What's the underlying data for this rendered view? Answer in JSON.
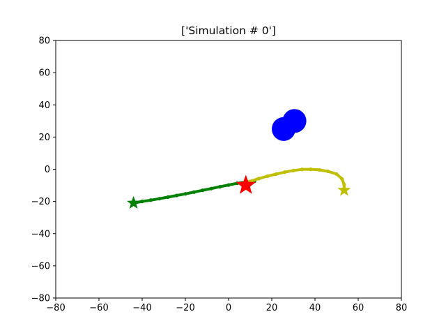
{
  "chart_data": {
    "type": "scatter",
    "title": "['Simulation # 0']",
    "xlabel": "",
    "ylabel": "",
    "xlim": [
      -80,
      80
    ],
    "ylim": [
      -80,
      80
    ],
    "xticks": [
      -80,
      -60,
      -40,
      -20,
      0,
      20,
      40,
      60,
      80
    ],
    "yticks": [
      -80,
      -60,
      -40,
      -20,
      0,
      20,
      40,
      60,
      80
    ],
    "grid": false,
    "series": [
      {
        "kind": "trajectory",
        "color": "#008000",
        "points": [
          [
            -44,
            -21
          ],
          [
            -40,
            -20
          ],
          [
            -36,
            -19.2
          ],
          [
            -32,
            -18.3
          ],
          [
            -28,
            -17.3
          ],
          [
            -24,
            -16.3
          ],
          [
            -20,
            -15.3
          ],
          [
            -16,
            -14.2
          ],
          [
            -12,
            -13.1
          ],
          [
            -8,
            -12
          ],
          [
            -4,
            -10.9
          ],
          [
            0,
            -9.8
          ],
          [
            4,
            -8.7
          ],
          [
            8,
            -8
          ],
          [
            12,
            -7.5
          ]
        ]
      },
      {
        "kind": "trajectory",
        "color": "#bfbf00",
        "points": [
          [
            7,
            -10
          ],
          [
            10,
            -7.5
          ],
          [
            14,
            -5.8
          ],
          [
            18,
            -4.3
          ],
          [
            22,
            -3
          ],
          [
            26,
            -1.8
          ],
          [
            30,
            -0.8
          ],
          [
            34,
            -0.1
          ],
          [
            38,
            0
          ],
          [
            42,
            -0.4
          ],
          [
            46,
            -1.3
          ],
          [
            50,
            -3
          ],
          [
            52.5,
            -6
          ],
          [
            53.5,
            -9.5
          ],
          [
            53.5,
            -13
          ]
        ]
      }
    ],
    "markers": [
      {
        "kind": "star",
        "color": "#008000",
        "x": -44,
        "y": -21,
        "size": "small"
      },
      {
        "kind": "star",
        "color": "#ff0000",
        "x": 8,
        "y": -10,
        "size": "large"
      },
      {
        "kind": "star",
        "color": "#bfbf00",
        "x": 53.5,
        "y": -13,
        "size": "small"
      },
      {
        "kind": "circle",
        "color": "#0000ff",
        "x": 25.5,
        "y": 25,
        "radius": 5.5
      },
      {
        "kind": "circle",
        "color": "#0000ff",
        "x": 30.5,
        "y": 30,
        "radius": 5.5
      }
    ]
  }
}
